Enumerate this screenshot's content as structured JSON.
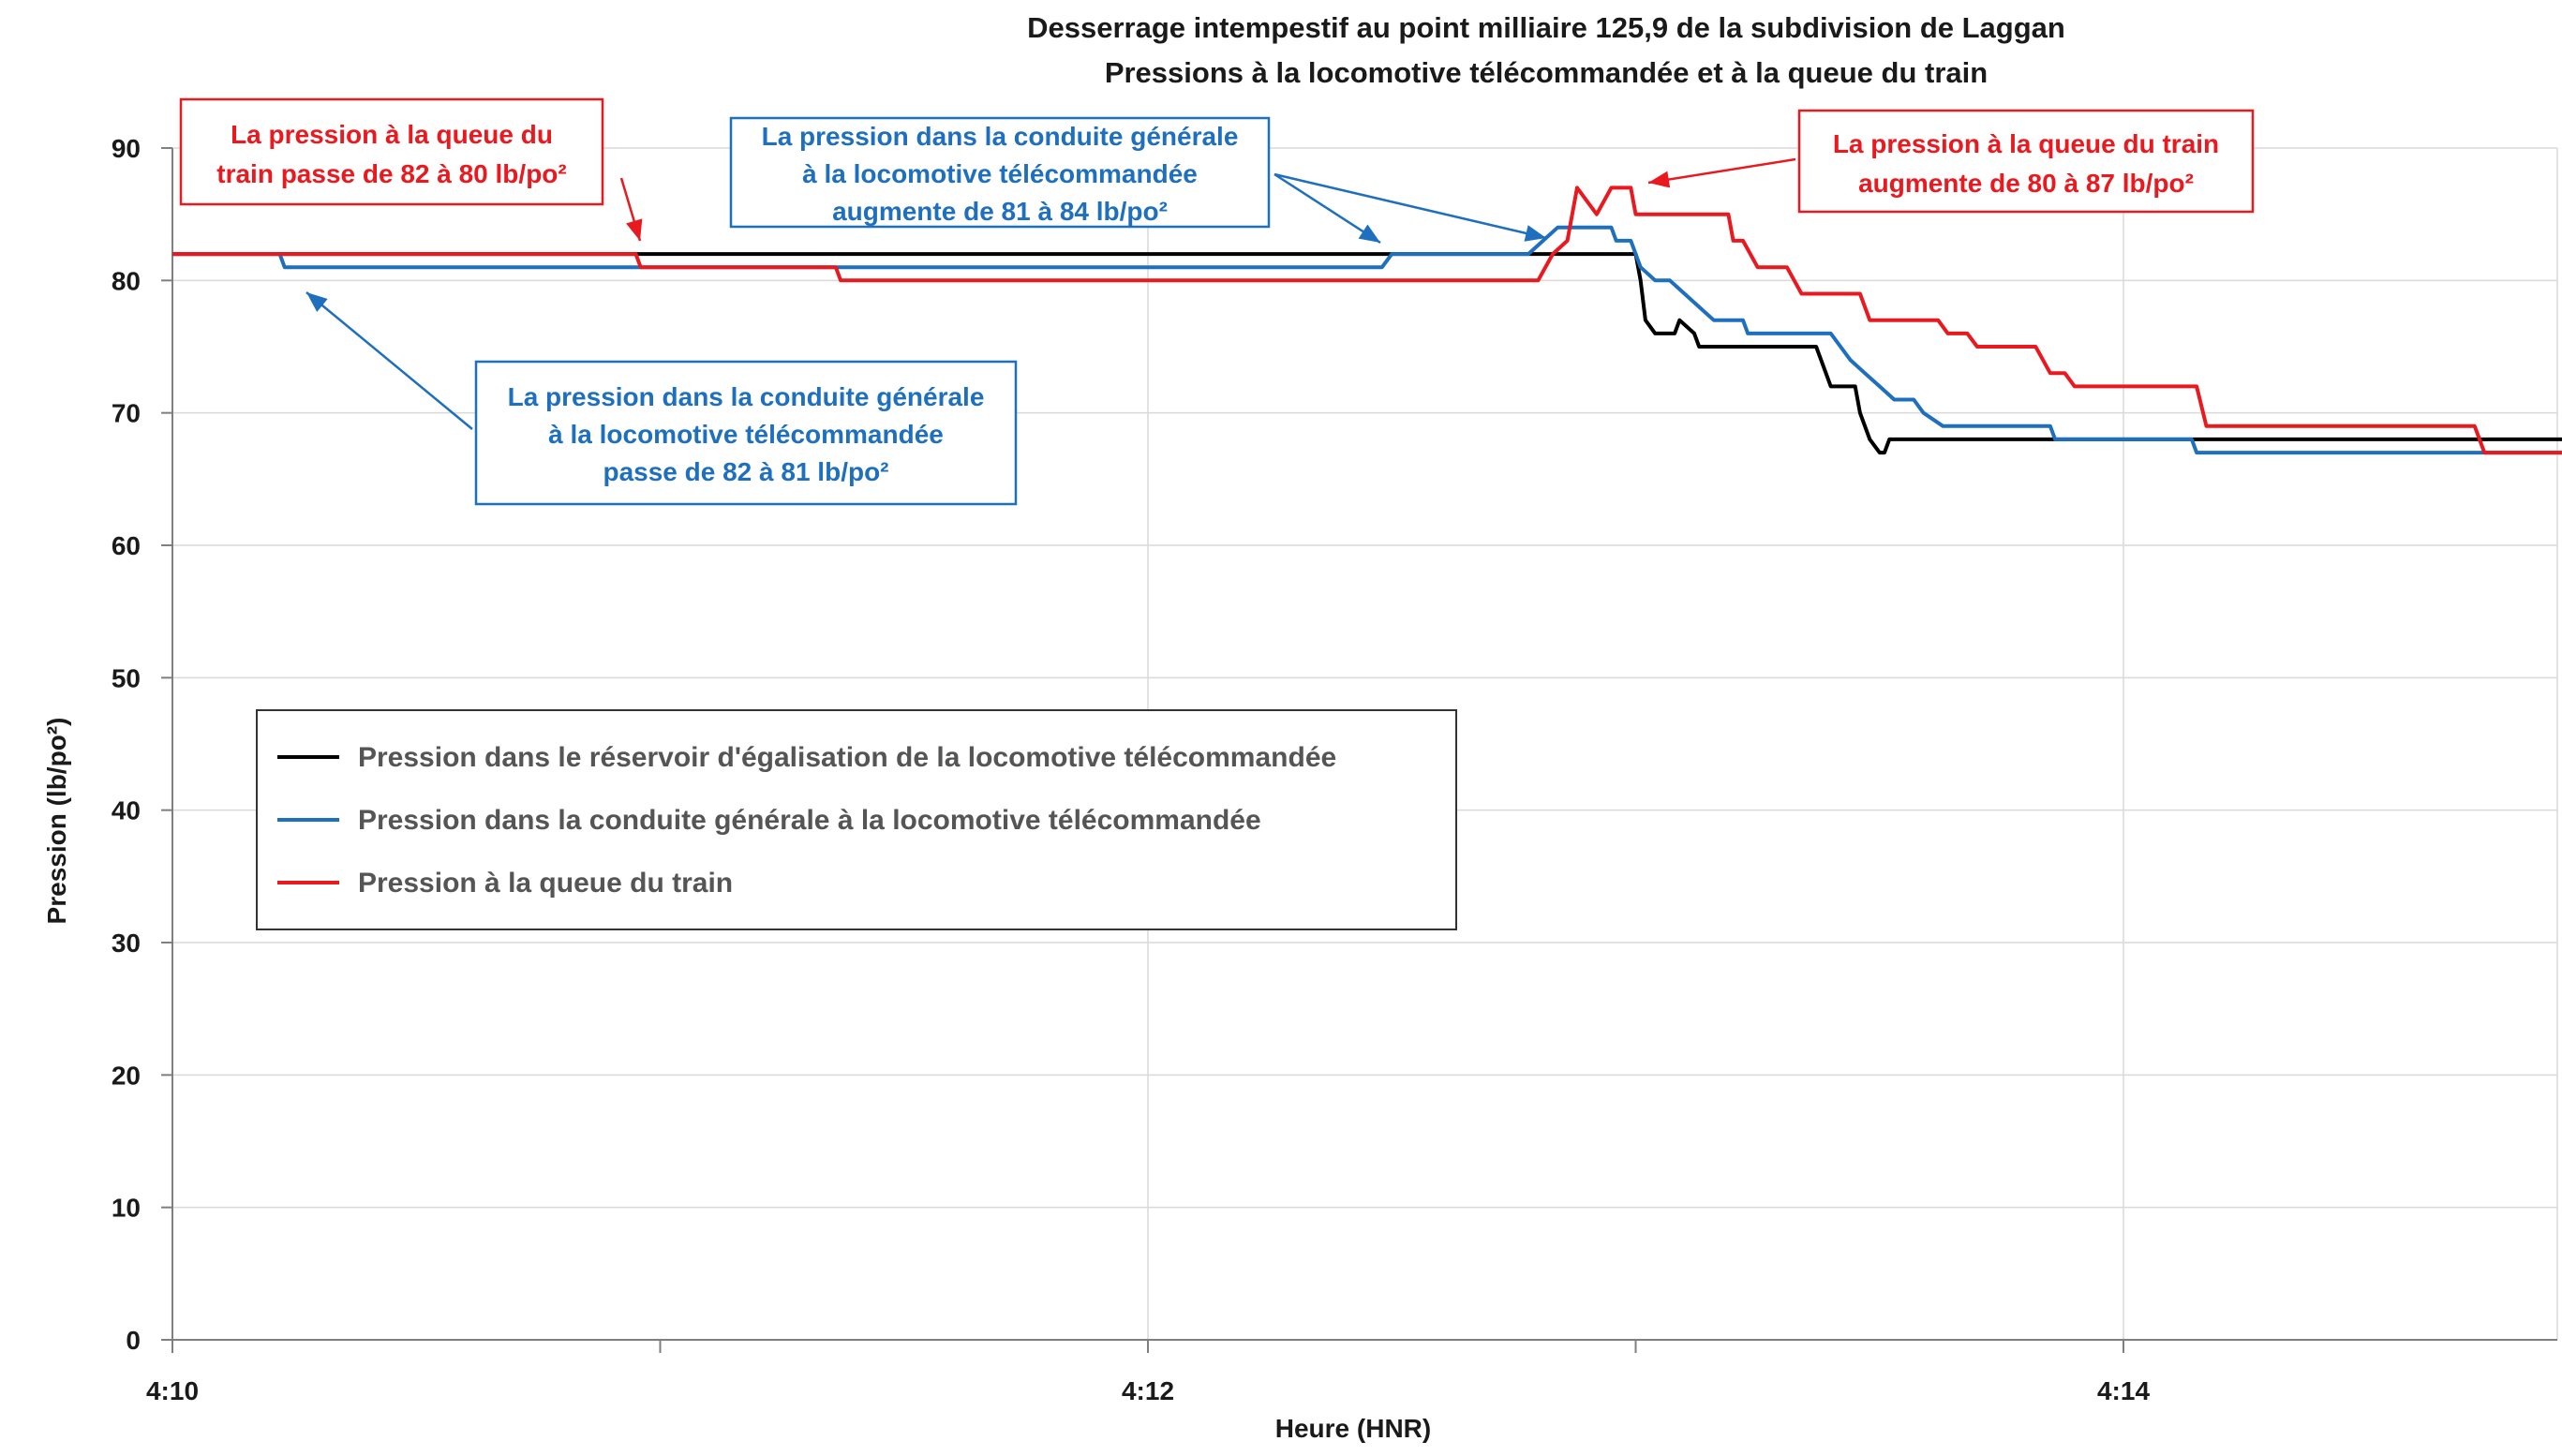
{
  "chart_data": {
    "type": "line",
    "title": "Desserrage intempestif au point milliaire 125,9 de la subdivision de Laggan",
    "subtitle": "Pressions à la locomotive télécommandée et à la queue du train",
    "xlabel": "Heure (HNR)",
    "ylabel": "Pression (lb/po²)",
    "x_unit": "minutes after 4:10",
    "xlim": [
      0,
      4.9
    ],
    "ylim": [
      0,
      90
    ],
    "y_ticks": [
      "0",
      "10",
      "20",
      "30",
      "40",
      "50",
      "60",
      "70",
      "80",
      "90"
    ],
    "x_tick_labels": [
      {
        "x": 0,
        "label": "4:10"
      },
      {
        "x": 2,
        "label": "4:12"
      },
      {
        "x": 4,
        "label": "4:14"
      }
    ],
    "x_minor_ticks": [
      1,
      3
    ],
    "grid": true,
    "legend_position": "center-left",
    "series": [
      {
        "name": "Pression dans le réservoir d'égalisation de la locomotive télécommandée",
        "color": "#000000",
        "points": [
          [
            0,
            82
          ],
          [
            2.82,
            82
          ],
          [
            2.93,
            82
          ],
          [
            3.0,
            82
          ],
          [
            3.01,
            80
          ],
          [
            3.02,
            77
          ],
          [
            3.04,
            76
          ],
          [
            3.08,
            76
          ],
          [
            3.09,
            77
          ],
          [
            3.12,
            76
          ],
          [
            3.13,
            75
          ],
          [
            3.37,
            75
          ],
          [
            3.38,
            74
          ],
          [
            3.4,
            72
          ],
          [
            3.45,
            72
          ],
          [
            3.46,
            70
          ],
          [
            3.48,
            68
          ],
          [
            3.5,
            67
          ],
          [
            3.51,
            67
          ],
          [
            3.52,
            68
          ],
          [
            4.9,
            68
          ]
        ]
      },
      {
        "name": "Pression dans la conduite générale à la locomotive télécommandée",
        "color": "#1f6fbf",
        "points": [
          [
            0,
            82
          ],
          [
            0.22,
            82
          ],
          [
            0.23,
            81
          ],
          [
            2.48,
            81
          ],
          [
            2.5,
            82
          ],
          [
            2.78,
            82
          ],
          [
            2.84,
            84
          ],
          [
            2.95,
            84
          ],
          [
            2.96,
            83
          ],
          [
            2.99,
            83
          ],
          [
            3.0,
            82
          ],
          [
            3.01,
            81
          ],
          [
            3.04,
            80
          ],
          [
            3.07,
            80
          ],
          [
            3.1,
            79
          ],
          [
            3.13,
            78
          ],
          [
            3.16,
            77
          ],
          [
            3.22,
            77
          ],
          [
            3.23,
            76
          ],
          [
            3.4,
            76
          ],
          [
            3.42,
            75
          ],
          [
            3.44,
            74
          ],
          [
            3.47,
            73
          ],
          [
            3.5,
            72
          ],
          [
            3.53,
            71
          ],
          [
            3.57,
            71
          ],
          [
            3.59,
            70
          ],
          [
            3.63,
            69
          ],
          [
            3.85,
            69
          ],
          [
            3.86,
            68
          ],
          [
            4.14,
            68
          ],
          [
            4.15,
            67
          ],
          [
            4.9,
            67
          ]
        ]
      },
      {
        "name": "Pression à la queue du train",
        "color": "#e8191f",
        "points": [
          [
            0,
            82
          ],
          [
            0.95,
            82
          ],
          [
            0.96,
            81
          ],
          [
            1.36,
            81
          ],
          [
            1.37,
            80
          ],
          [
            2.8,
            80
          ],
          [
            2.83,
            82
          ],
          [
            2.86,
            83
          ],
          [
            2.88,
            87
          ],
          [
            2.92,
            85
          ],
          [
            2.95,
            87
          ],
          [
            2.99,
            87
          ],
          [
            3.0,
            85
          ],
          [
            3.19,
            85
          ],
          [
            3.2,
            83
          ],
          [
            3.22,
            83
          ],
          [
            3.25,
            81
          ],
          [
            3.31,
            81
          ],
          [
            3.34,
            79
          ],
          [
            3.46,
            79
          ],
          [
            3.48,
            77
          ],
          [
            3.62,
            77
          ],
          [
            3.64,
            76
          ],
          [
            3.68,
            76
          ],
          [
            3.7,
            75
          ],
          [
            3.82,
            75
          ],
          [
            3.85,
            73
          ],
          [
            3.88,
            73
          ],
          [
            3.9,
            72
          ],
          [
            4.15,
            72
          ],
          [
            4.17,
            69
          ],
          [
            4.72,
            69
          ],
          [
            4.74,
            67
          ],
          [
            4.9,
            67
          ]
        ]
      }
    ],
    "annotations": [
      {
        "lines": [
          "La pression à la queue du",
          "train passe de 82 à 80 lb/po²"
        ],
        "color": "#e8191f"
      },
      {
        "lines": [
          "La pression dans la conduite générale",
          "à la locomotive télécommandée",
          "augmente de 81 à 84 lb/po²"
        ],
        "color": "#1f6fbf"
      },
      {
        "lines": [
          "La pression à la queue du train",
          "augmente de 80 à 87 lb/po²"
        ],
        "color": "#e8191f"
      },
      {
        "lines": [
          "La pression dans la conduite générale",
          "à la locomotive télécommandée",
          "passe de 82 à 81 lb/po²"
        ],
        "color": "#1f6fbf"
      }
    ]
  },
  "colors": {
    "axis": "#7f7f7f",
    "grid": "#d9d9d9",
    "text": "#1a1a1a",
    "legend_text": "#555555",
    "black_series": "#000000",
    "blue_series": "#1f6fbf",
    "red_series": "#e8191f"
  }
}
